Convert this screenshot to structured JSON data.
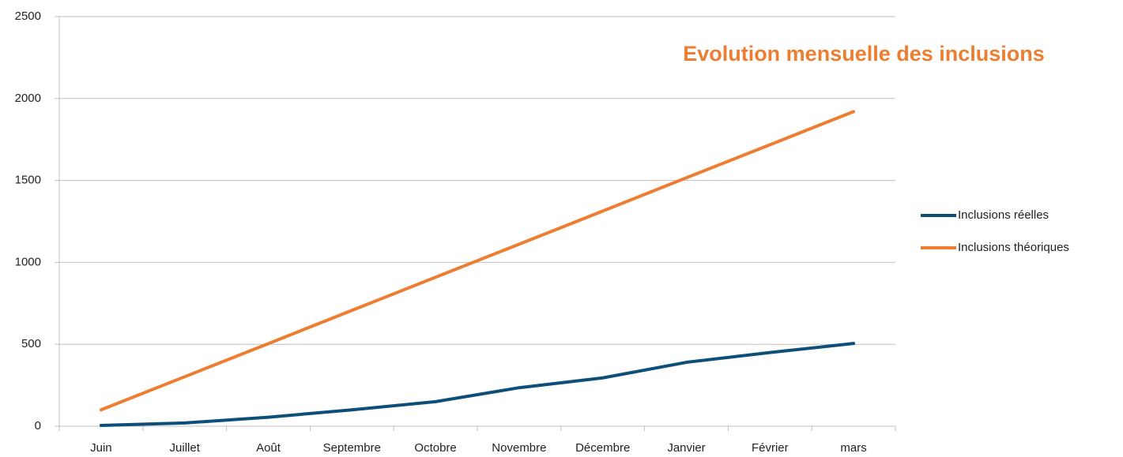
{
  "chart_data": {
    "type": "line",
    "title": "Evolution mensuelle des inclusions",
    "categories": [
      "Juin",
      "Juillet",
      "Août",
      "Septembre",
      "Octobre",
      "Novembre",
      "Décembre",
      "Janvier",
      "Février",
      "mars"
    ],
    "series": [
      {
        "name": "Inclusions réelles",
        "color": "#0e4f7a",
        "values": [
          5,
          20,
          55,
          100,
          150,
          235,
          295,
          390,
          450,
          505
        ]
      },
      {
        "name": "Inclusions théoriques",
        "color": "#ed7d31",
        "values": [
          100,
          302,
          504,
          707,
          909,
          1111,
          1313,
          1516,
          1718,
          1920
        ]
      }
    ],
    "ylim": [
      0,
      2500
    ],
    "yticks": [
      0,
      500,
      1000,
      1500,
      2000,
      2500
    ],
    "grid": true,
    "legend": "right"
  }
}
